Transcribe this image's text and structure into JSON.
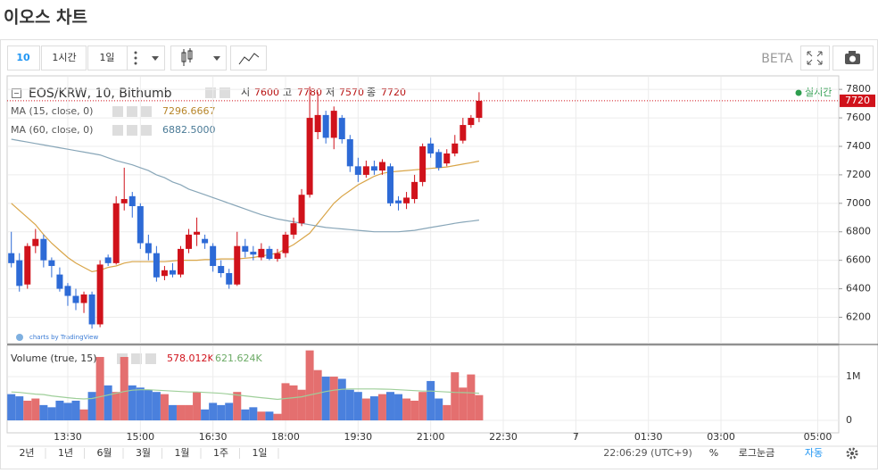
{
  "title": "이오스 차트",
  "toolbar": {
    "intervals": [
      "10",
      "1시간",
      "1일"
    ],
    "beta": "BETA"
  },
  "chart_data": {
    "type": "candlestick",
    "legend": {
      "symbol": "EOS/KRW, 10, Bithumb",
      "ohlc_labels": [
        "시",
        "고",
        "저",
        "종"
      ],
      "realtime": "실시간"
    },
    "up_color": "#d0121b",
    "down_color": "#2d6ad6",
    "open": [
      6650,
      6600,
      6430,
      6700,
      6750,
      6600,
      6500,
      6420,
      6350,
      6300,
      6360,
      6150,
      6620,
      6580,
      7000,
      7050,
      6980,
      6720,
      6650,
      6490,
      6530,
      6500,
      6680,
      6780,
      6750,
      6700,
      6560,
      6510,
      6430,
      6700,
      6660,
      6620,
      6680,
      6610,
      6650,
      6780,
      6860,
      7060,
      7500,
      7620,
      7460,
      7600,
      7450,
      7260,
      7200,
      7260,
      7230,
      7260,
      7020,
      7000,
      7030,
      7150,
      7420,
      7360,
      7280,
      7350,
      7440,
      7550,
      7600
    ],
    "high": [
      6800,
      6650,
      6720,
      6820,
      6780,
      6620,
      6550,
      6440,
      6400,
      6380,
      6380,
      6600,
      6640,
      7050,
      7250,
      7080,
      7000,
      6780,
      6700,
      6560,
      6580,
      6700,
      6820,
      6900,
      6780,
      6720,
      6600,
      6540,
      6800,
      6750,
      6700,
      6720,
      6700,
      6680,
      6800,
      6900,
      7100,
      7820,
      7780,
      7650,
      7680,
      7620,
      7480,
      7320,
      7300,
      7300,
      7310,
      7280,
      7050,
      7080,
      7200,
      7420,
      7460,
      7380,
      7380,
      7480,
      7600,
      7620,
      7780
    ],
    "low": [
      6550,
      6380,
      6400,
      6650,
      6550,
      6480,
      6380,
      6280,
      6250,
      6230,
      6120,
      6130,
      6560,
      6570,
      6950,
      6900,
      6680,
      6600,
      6450,
      6460,
      6480,
      6480,
      6650,
      6700,
      6680,
      6520,
      6480,
      6400,
      6420,
      6620,
      6600,
      6600,
      6600,
      6590,
      6620,
      6750,
      6840,
      7040,
      7450,
      7420,
      7380,
      7420,
      7220,
      7150,
      7180,
      7200,
      7200,
      6980,
      6950,
      6960,
      7000,
      7120,
      7320,
      7230,
      7260,
      7330,
      7420,
      7530,
      7570
    ],
    "close": [
      6580,
      6420,
      6700,
      6750,
      6600,
      6560,
      6400,
      6350,
      6300,
      6360,
      6150,
      6570,
      6580,
      7000,
      7030,
      6980,
      6720,
      6650,
      6480,
      6530,
      6500,
      6680,
      6780,
      6800,
      6720,
      6560,
      6510,
      6430,
      6700,
      6660,
      6640,
      6680,
      6610,
      6650,
      6780,
      6860,
      7060,
      7600,
      7620,
      7460,
      7650,
      7450,
      7260,
      7200,
      7260,
      7230,
      7290,
      7000,
      7000,
      7040,
      7150,
      7400,
      7350,
      7250,
      7350,
      7420,
      7550,
      7600,
      7720
    ],
    "series": [
      {
        "name": "MA (15, close, 0)",
        "color": "#d9a548",
        "values": [
          7000,
          6950,
          6900,
          6850,
          6780,
          6720,
          6670,
          6620,
          6580,
          6550,
          6520,
          6530,
          6550,
          6560,
          6580,
          6590,
          6590,
          6590,
          6590,
          6590,
          6595,
          6600,
          6600,
          6600,
          6605,
          6605,
          6610,
          6610,
          6610,
          6615,
          6620,
          6630,
          6640,
          6650,
          6680,
          6710,
          6750,
          6790,
          6860,
          6930,
          7000,
          7050,
          7090,
          7130,
          7160,
          7190,
          7210,
          7220,
          7225,
          7230,
          7235,
          7240,
          7245,
          7250,
          7255,
          7265,
          7275,
          7285,
          7296.6667
        ]
      },
      {
        "name": "MA (60, close, 0)",
        "color": "#88a6b8",
        "values": [
          7450,
          7440,
          7430,
          7420,
          7410,
          7400,
          7390,
          7380,
          7370,
          7360,
          7350,
          7340,
          7320,
          7300,
          7285,
          7270,
          7250,
          7230,
          7200,
          7180,
          7150,
          7130,
          7100,
          7080,
          7060,
          7040,
          7020,
          7000,
          6980,
          6960,
          6940,
          6920,
          6905,
          6890,
          6880,
          6870,
          6860,
          6850,
          6840,
          6830,
          6825,
          6820,
          6815,
          6810,
          6805,
          6800,
          6800,
          6800,
          6800,
          6805,
          6810,
          6820,
          6830,
          6840,
          6850,
          6860,
          6868,
          6875,
          6882.5
        ],
        "value_labels": [
          null,
          null,
          null,
          null,
          null,
          null,
          null,
          null,
          null,
          null,
          null,
          null,
          null,
          null,
          null,
          null,
          null,
          null,
          null,
          null,
          null,
          null,
          null,
          null,
          null,
          null,
          null,
          null,
          null,
          null,
          null,
          null,
          null,
          null,
          null,
          null,
          null,
          null,
          null,
          null,
          null,
          null,
          null,
          null,
          null,
          null,
          null,
          null,
          null,
          null,
          null,
          null,
          null,
          null,
          null,
          null,
          null,
          null,
          "6882.5000"
        ]
      }
    ],
    "ylim": [
      6015,
      7895
    ],
    "yticks": [
      6200,
      6400,
      6600,
      6800,
      7000,
      7200,
      7400,
      7600,
      7800
    ],
    "xlim": [
      -0.52,
      102.6
    ],
    "xticks": [
      {
        "value": 7,
        "label": "13:30"
      },
      {
        "value": 16,
        "label": "15:00"
      },
      {
        "value": 25,
        "label": "16:30"
      },
      {
        "value": 34,
        "label": "18:00"
      },
      {
        "value": 43,
        "label": "19:30"
      },
      {
        "value": 52,
        "label": "21:00"
      },
      {
        "value": 61,
        "label": "22:30"
      },
      {
        "value": 70,
        "label": "7"
      },
      {
        "value": 79,
        "label": "01:30"
      },
      {
        "value": 88,
        "label": "03:00"
      },
      {
        "value": 100,
        "label": "05:00"
      }
    ],
    "grid": true,
    "volume": {
      "name": "Volume (true, 15)",
      "values": [
        600000,
        550000,
        450000,
        500000,
        350000,
        300000,
        450000,
        400000,
        450000,
        250000,
        650000,
        1450000,
        800000,
        650000,
        1450000,
        800000,
        750000,
        700000,
        650000,
        600000,
        350000,
        350000,
        350000,
        650000,
        250000,
        400000,
        350000,
        400000,
        650000,
        250000,
        300000,
        200000,
        200000,
        150000,
        850000,
        800000,
        700000,
        1600000,
        1150000,
        1000000,
        1000000,
        950000,
        700000,
        650000,
        500000,
        550000,
        600000,
        650000,
        600000,
        500000,
        450000,
        650000,
        900000,
        500000,
        350000,
        1100000,
        750000,
        1050000,
        578012
      ],
      "value_labels": [
        null,
        null,
        null,
        null,
        null,
        null,
        null,
        null,
        null,
        null,
        null,
        null,
        null,
        null,
        null,
        null,
        null,
        null,
        null,
        null,
        null,
        null,
        null,
        null,
        null,
        null,
        null,
        null,
        null,
        null,
        null,
        null,
        null,
        null,
        null,
        null,
        null,
        null,
        null,
        null,
        null,
        null,
        null,
        null,
        null,
        null,
        null,
        null,
        null,
        null,
        null,
        null,
        null,
        null,
        null,
        null,
        null,
        null,
        "578.012K"
      ],
      "up_color": "#e46f6f",
      "down_color": "#4a80dd",
      "ma": {
        "color": "#9fcf9a",
        "values": [
          650000,
          640000,
          620000,
          600000,
          590000,
          560000,
          540000,
          520000,
          500000,
          490000,
          500000,
          540000,
          580000,
          620000,
          660000,
          690000,
          700000,
          700000,
          690000,
          680000,
          670000,
          660000,
          650000,
          650000,
          640000,
          630000,
          620000,
          600000,
          580000,
          560000,
          540000,
          520000,
          500000,
          480000,
          500000,
          520000,
          540000,
          580000,
          620000,
          660000,
          690000,
          710000,
          720000,
          720000,
          720000,
          720000,
          715000,
          710000,
          700000,
          690000,
          680000,
          670000,
          670000,
          660000,
          650000,
          640000,
          635000,
          630000,
          621624
        ],
        "value_labels": [
          null,
          null,
          null,
          null,
          null,
          null,
          null,
          null,
          null,
          null,
          null,
          null,
          null,
          null,
          null,
          null,
          null,
          null,
          null,
          null,
          null,
          null,
          null,
          null,
          null,
          null,
          null,
          null,
          null,
          null,
          null,
          null,
          null,
          null,
          null,
          null,
          null,
          null,
          null,
          null,
          null,
          null,
          null,
          null,
          null,
          null,
          null,
          null,
          null,
          null,
          null,
          null,
          null,
          null,
          null,
          null,
          null,
          null,
          "621.624K"
        ]
      },
      "ylim": [
        -285000,
        1715000
      ],
      "yticks": [
        0,
        {
          "value": 1000000,
          "label": "1M"
        }
      ]
    },
    "watermark": "charts by TradingView"
  },
  "footer": {
    "ranges": [
      "2년",
      "1년",
      "6월",
      "3월",
      "1월",
      "1주",
      "1일"
    ],
    "time": "22:06:29 (UTC+9)",
    "percent": "%",
    "log": "로그눈금",
    "auto": "자동"
  }
}
